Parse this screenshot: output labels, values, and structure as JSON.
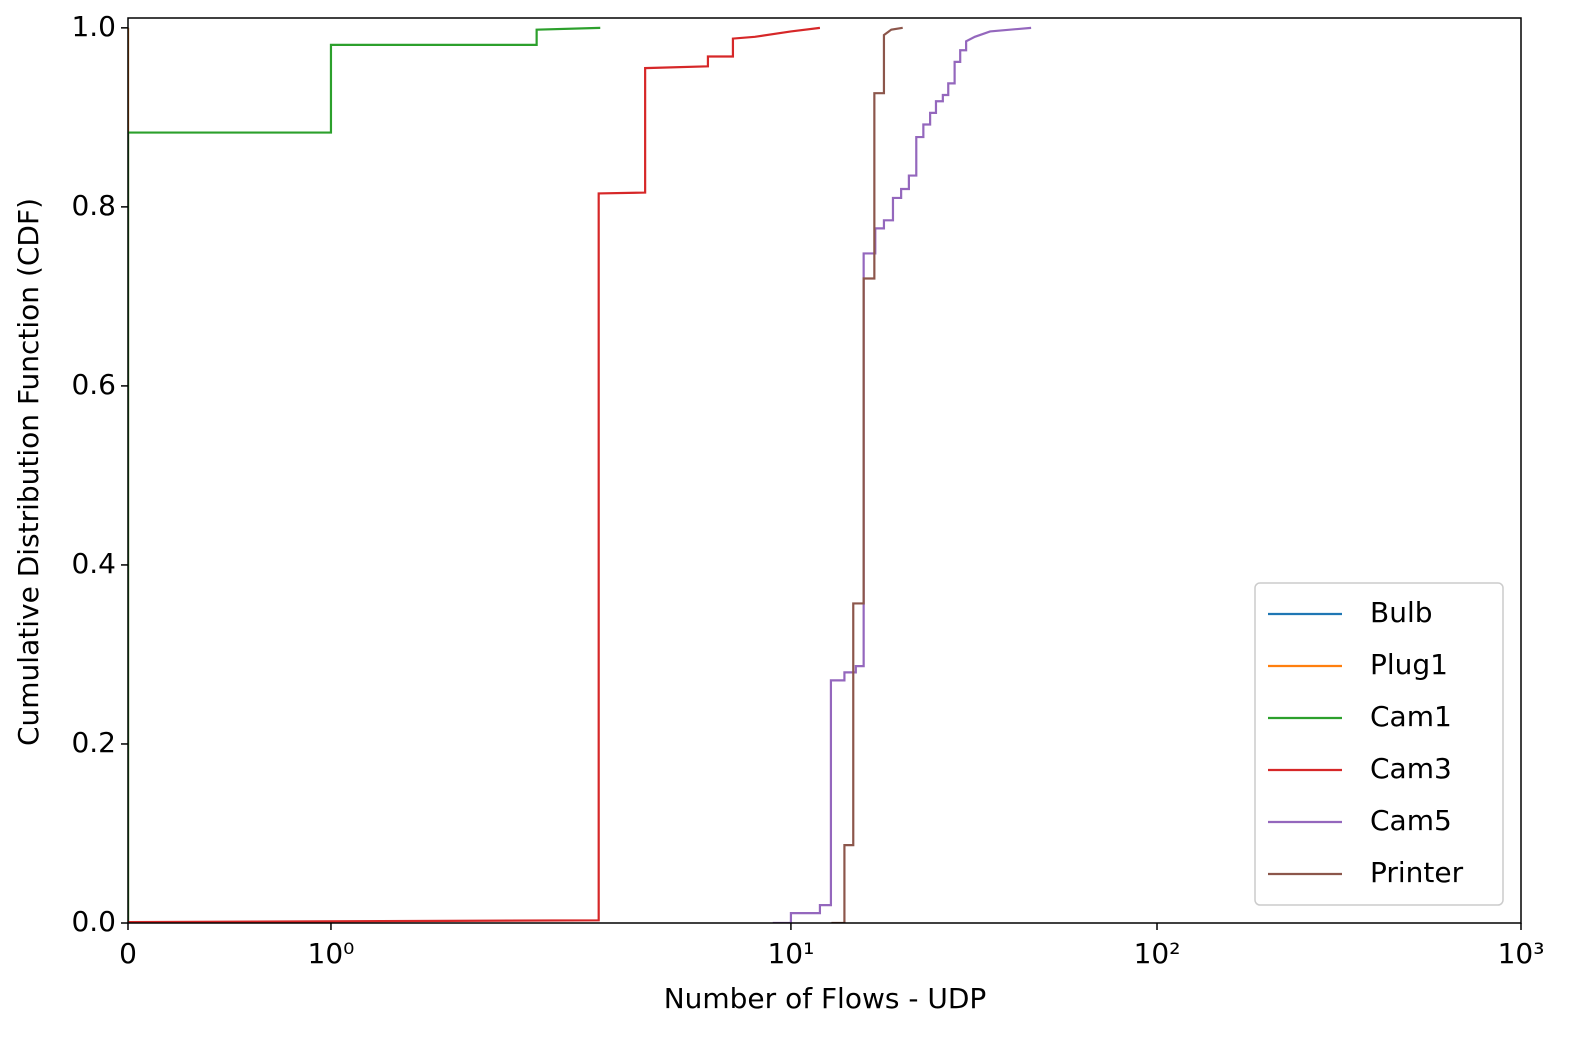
{
  "chart_data": {
    "type": "step-line",
    "x_label": "Number of Flows - UDP",
    "y_label": "Cumulative Distribution Function (CDF)",
    "xscale": "symlog",
    "xlim": [
      0,
      1000
    ],
    "xticks": [
      0,
      {
        "value": 1,
        "label": "10⁰"
      },
      {
        "value": 10,
        "label": "10¹"
      },
      {
        "value": 100,
        "label": "10²"
      },
      {
        "value": 1000,
        "label": "10³"
      }
    ],
    "ylim": [
      0,
      1.011
    ],
    "yticks": [
      {
        "value": 0,
        "label": "0.0"
      },
      {
        "value": 0.2,
        "label": "0.2"
      },
      {
        "value": 0.4,
        "label": "0.4"
      },
      {
        "value": 0.6,
        "label": "0.6"
      },
      {
        "value": 0.8,
        "label": "0.8"
      },
      {
        "value": 1,
        "label": "1.0"
      }
    ],
    "legend": "lower right",
    "series": [
      {
        "name": "Bulb",
        "color": "#1f77b4",
        "x": [
          0,
          0
        ],
        "values": [
          0,
          1
        ]
      },
      {
        "name": "Plug1",
        "color": "#ff7f0e",
        "x": [
          0,
          0
        ],
        "values": [
          0,
          1
        ]
      },
      {
        "name": "Cam1",
        "color": "#2ca02c",
        "x": [
          0,
          0,
          1,
          1,
          2.8,
          2.8,
          3.85
        ],
        "values": [
          0,
          0.883,
          0.883,
          0.981,
          0.981,
          0.998,
          1.0
        ]
      },
      {
        "name": "Cam3",
        "color": "#d62728",
        "x": [
          0,
          3.82,
          3.82,
          4.82,
          4.82,
          6.6,
          6.6,
          7.48,
          7.48,
          8.35,
          10,
          12.0
        ],
        "values": [
          0.001,
          0.003,
          0.815,
          0.816,
          0.955,
          0.957,
          0.968,
          0.968,
          0.988,
          0.99,
          0.996,
          1.0
        ]
      },
      {
        "name": "Cam5",
        "color": "#9467bd",
        "x": [
          9.13,
          10,
          10,
          12.0,
          12.0,
          12.86,
          12.86,
          14.0,
          14.0,
          15.04,
          15.04,
          15.8,
          15.8,
          17.0,
          17.0,
          17.95,
          17.95,
          19.0,
          19.0,
          20.0,
          20.0,
          21.0,
          21.0,
          22.0,
          22.0,
          23.0,
          23.0,
          24.0,
          24.0,
          24.9,
          24.9,
          26.0,
          26.0,
          26.9,
          26.9,
          28.0,
          28.0,
          29.0,
          29.0,
          30.1,
          30.1,
          31.8,
          35,
          45.3
        ],
        "values": [
          0,
          0,
          0.011,
          0.011,
          0.02,
          0.02,
          0.271,
          0.271,
          0.28,
          0.28,
          0.287,
          0.287,
          0.748,
          0.748,
          0.776,
          0.776,
          0.785,
          0.785,
          0.81,
          0.81,
          0.82,
          0.82,
          0.835,
          0.835,
          0.878,
          0.878,
          0.892,
          0.892,
          0.905,
          0.905,
          0.918,
          0.918,
          0.925,
          0.925,
          0.938,
          0.938,
          0.962,
          0.962,
          0.975,
          0.975,
          0.985,
          0.99,
          0.996,
          1.0
        ]
      },
      {
        "name": "Printer",
        "color": "#8c564b",
        "x": [
          12.9,
          14.0,
          14.0,
          14.0,
          14.8,
          14.8,
          15.8,
          15.8,
          16.9,
          16.9,
          17.95,
          17.95,
          18.8,
          20.2
        ],
        "values": [
          0,
          0,
          0.008,
          0.087,
          0.087,
          0.357,
          0.357,
          0.72,
          0.72,
          0.927,
          0.927,
          0.992,
          0.998,
          1.0
        ]
      }
    ]
  }
}
